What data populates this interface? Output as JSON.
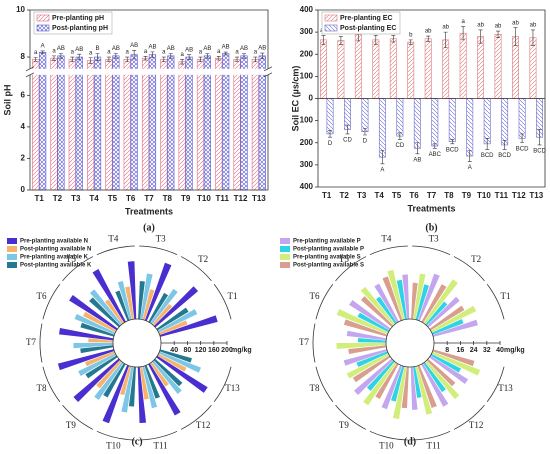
{
  "chart_data": [
    {
      "type": "bar",
      "xlabel": "Treatments",
      "ylabel": "Soil pH",
      "panel_label": "(a)",
      "categories": [
        "T1",
        "T2",
        "T3",
        "T4",
        "T5",
        "T6",
        "T7",
        "T8",
        "T9",
        "T10",
        "T11",
        "T12",
        "T13"
      ],
      "ylim": [
        0,
        10
      ],
      "ybreak": [
        7.3,
        7.5
      ],
      "yticks": [
        0,
        2,
        4,
        6,
        8,
        10
      ],
      "legend": "upper left",
      "series": [
        {
          "name": "Pre-planting pH",
          "color": "#e06c7c",
          "hatch": "/",
          "values": [
            7.9,
            7.95,
            7.9,
            7.85,
            7.9,
            7.9,
            7.95,
            7.9,
            7.8,
            7.9,
            7.95,
            7.9,
            7.9
          ],
          "errors": [
            0.08,
            0.1,
            0.1,
            0.12,
            0.1,
            0.1,
            0.08,
            0.1,
            0.1,
            0.1,
            0.08,
            0.1,
            0.1
          ],
          "labels": [
            "a",
            "a",
            "a",
            "a",
            "a",
            "a",
            "a",
            "a",
            "a",
            "a",
            "a",
            "a",
            "a"
          ]
        },
        {
          "name": "Post-planting pH",
          "color": "#5a5ad6",
          "hatch": "x",
          "values": [
            8.2,
            8.05,
            8.0,
            8.0,
            8.05,
            8.1,
            8.1,
            8.05,
            8.0,
            8.05,
            8.15,
            8.05,
            8.05
          ],
          "errors": [
            0.06,
            0.1,
            0.12,
            0.15,
            0.1,
            0.18,
            0.12,
            0.1,
            0.1,
            0.1,
            0.06,
            0.1,
            0.12
          ],
          "labels": [
            "A",
            "AB",
            "AB",
            "B",
            "AB",
            "AB",
            "AB",
            "AB",
            "AB",
            "AB",
            "AB",
            "AB",
            "AB"
          ]
        }
      ]
    },
    {
      "type": "bar",
      "xlabel": "Treatments",
      "ylabel": "Soil EC (µs/cm)",
      "panel_label": "(b)",
      "categories": [
        "T1",
        "T2",
        "T3",
        "T4",
        "T5",
        "T6",
        "T7",
        "T8",
        "T9",
        "T10",
        "T11",
        "T12",
        "T13"
      ],
      "ylim": [
        -400,
        400
      ],
      "yticks": [
        {
          "value": -400,
          "label": "400"
        },
        {
          "value": -300,
          "label": "300"
        },
        {
          "value": -200,
          "label": "200"
        },
        {
          "value": -100,
          "label": "100"
        },
        0,
        100,
        200,
        300,
        400
      ],
      "legend": "upper left",
      "series": [
        {
          "name": "Pre-planting EC",
          "color": "#e07a7a",
          "hatch": "/",
          "values": [
            265,
            262,
            290,
            265,
            270,
            255,
            270,
            265,
            295,
            280,
            290,
            280,
            275
          ],
          "errors": [
            20,
            18,
            30,
            20,
            15,
            10,
            12,
            35,
            30,
            30,
            15,
            40,
            35
          ],
          "labels": [
            "ab",
            "ab",
            "a",
            "ab",
            "ab",
            "b",
            "ab",
            "ab",
            "a",
            "ab",
            "ab",
            "ab",
            "ab"
          ]
        },
        {
          "name": "Post-planting EC",
          "color": "#6a6ad0",
          "hatch": "\\",
          "values": [
            -160,
            -140,
            -150,
            -265,
            -170,
            -225,
            -215,
            -195,
            -260,
            -205,
            -210,
            -180,
            -175
          ],
          "errors": [
            15,
            20,
            15,
            30,
            15,
            25,
            10,
            10,
            25,
            25,
            20,
            20,
            35
          ],
          "labels": [
            "D",
            "CD",
            "D",
            "A",
            "CD",
            "AB",
            "ABC",
            "BCD",
            "A",
            "BCD",
            "BCD",
            "BCD",
            "BCD"
          ]
        }
      ]
    },
    {
      "type": "radial_bar",
      "panel_label": "(c)",
      "rlim": [
        0,
        200
      ],
      "rticks": [
        40,
        80,
        120,
        160,
        200
      ],
      "r_unit": "mg/kg",
      "categories": [
        "T1",
        "T2",
        "T3",
        "T4",
        "T5",
        "T6",
        "T7",
        "T8",
        "T9",
        "T10",
        "T11",
        "T12",
        "T13"
      ],
      "series": [
        {
          "name": "Pre-planting available N",
          "color": "#4a2ecf",
          "values": [
            180,
            170,
            185,
            175,
            180,
            170,
            165,
            175,
            180,
            185,
            170,
            175,
            180
          ]
        },
        {
          "name": "Post-planting available N",
          "color": "#f6b36e",
          "values": [
            90,
            80,
            95,
            100,
            85,
            110,
            75,
            95,
            105,
            90,
            100,
            85,
            95
          ]
        },
        {
          "name": "Pre-planting available K",
          "color": "#7cc6e6",
          "values": [
            130,
            125,
            140,
            120,
            135,
            130,
            120,
            125,
            135,
            140,
            130,
            125,
            135
          ]
        },
        {
          "name": "Post-planting available K",
          "color": "#24788f",
          "values": [
            110,
            100,
            115,
            95,
            120,
            105,
            100,
            110,
            115,
            120,
            105,
            110,
            100
          ]
        }
      ]
    },
    {
      "type": "radial_bar",
      "panel_label": "(d)",
      "rlim": [
        0,
        40
      ],
      "rticks": [
        8,
        16,
        24,
        32,
        40
      ],
      "r_unit": "mg/kg",
      "categories": [
        "T1",
        "T2",
        "T3",
        "T4",
        "T5",
        "T6",
        "T7",
        "T8",
        "T9",
        "T10",
        "T11",
        "T12",
        "T13"
      ],
      "series": [
        {
          "name": "Pre-planting available P",
          "color": "#c3a6ee",
          "values": [
            28,
            25,
            30,
            27,
            26,
            29,
            24,
            27,
            30,
            28,
            26,
            29,
            27
          ]
        },
        {
          "name": "Post-planting available P",
          "color": "#2fd3e6",
          "values": [
            20,
            18,
            22,
            24,
            19,
            21,
            17,
            20,
            23,
            22,
            19,
            21,
            20
          ]
        },
        {
          "name": "Pre-planting available S",
          "color": "#d2ee7a",
          "values": [
            30,
            32,
            28,
            31,
            29,
            33,
            30,
            28,
            31,
            32,
            30,
            29,
            31
          ]
        },
        {
          "name": "Post-planting available S",
          "color": "#d89f8e",
          "values": [
            24,
            26,
            22,
            28,
            25,
            27,
            23,
            26,
            24,
            25,
            27,
            22,
            26
          ]
        }
      ]
    }
  ]
}
